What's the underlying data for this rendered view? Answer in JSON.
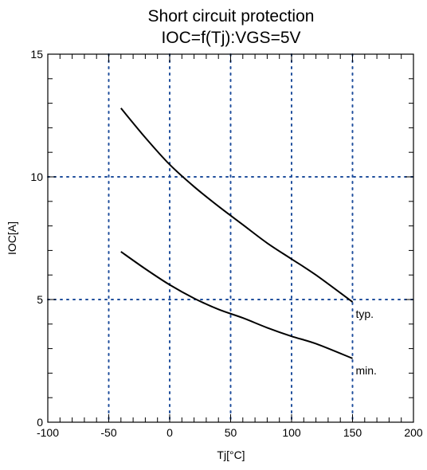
{
  "chart_data": {
    "type": "line",
    "title": "Short circuit protection",
    "subtitle": "IOC=f(Tj):VGS=5V",
    "xlabel": "Tj[°C]",
    "ylabel": "IOC[A]",
    "xlim": [
      -100,
      200
    ],
    "ylim": [
      0,
      15
    ],
    "x_ticks": [
      -100,
      -50,
      0,
      50,
      100,
      150,
      200
    ],
    "x_tick_labels": [
      "-100",
      "-50",
      "0",
      "50",
      "100",
      "150",
      "200"
    ],
    "y_ticks": [
      0,
      5,
      10,
      15
    ],
    "y_tick_labels": [
      "0",
      "5",
      "10",
      "15"
    ],
    "x_minor_step": 10,
    "y_minor_step": 1,
    "grid": "dotted, major ticks",
    "grid_color": "#1f4e9c",
    "series": [
      {
        "name": "typ.",
        "color": "#000000",
        "x": [
          -40,
          -20,
          0,
          20,
          40,
          60,
          80,
          100,
          120,
          150
        ],
        "y": [
          12.8,
          11.6,
          10.5,
          9.6,
          8.8,
          8.05,
          7.3,
          6.65,
          6.0,
          4.9
        ]
      },
      {
        "name": "min.",
        "color": "#000000",
        "x": [
          -40,
          -20,
          0,
          20,
          40,
          60,
          80,
          100,
          120,
          150
        ],
        "y": [
          6.95,
          6.25,
          5.6,
          5.05,
          4.6,
          4.25,
          3.85,
          3.5,
          3.2,
          2.6
        ]
      }
    ]
  }
}
